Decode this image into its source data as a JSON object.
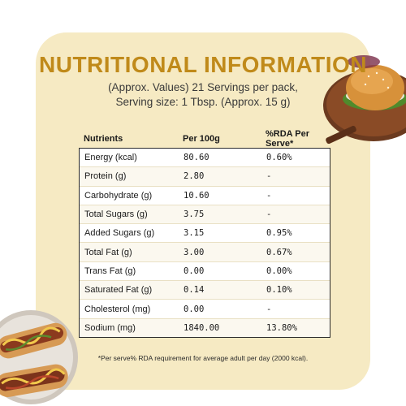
{
  "header": {
    "title": "NUTRITIONAL INFORMATION",
    "subtitle_line1": "(Approx. Values) 21 Servings per pack,",
    "subtitle_line2": "Serving size: 1 Tbsp. (Approx. 15 g)"
  },
  "table": {
    "columns": [
      "Nutrients",
      "Per 100g",
      "%RDA Per Serve*"
    ],
    "rows": [
      {
        "nutrient": "Energy (kcal)",
        "per100g": "80.60",
        "rda": "0.60%"
      },
      {
        "nutrient": "Protein (g)",
        "per100g": "2.80",
        "rda": "-"
      },
      {
        "nutrient": "Carbohydrate (g)",
        "per100g": "10.60",
        "rda": "-"
      },
      {
        "nutrient": "Total Sugars (g)",
        "per100g": "3.75",
        "rda": "-"
      },
      {
        "nutrient": "Added Sugars (g)",
        "per100g": "3.15",
        "rda": "0.95%"
      },
      {
        "nutrient": "Total Fat (g)",
        "per100g": "3.00",
        "rda": "0.67%"
      },
      {
        "nutrient": "Trans Fat (g)",
        "per100g": "0.00",
        "rda": "0.00%"
      },
      {
        "nutrient": "Saturated Fat (g)",
        "per100g": "0.14",
        "rda": "0.10%"
      },
      {
        "nutrient": "Cholesterol (mg)",
        "per100g": "0.00",
        "rda": "-"
      },
      {
        "nutrient": "Sodium (mg)",
        "per100g": "1840.00",
        "rda": "13.80%"
      }
    ]
  },
  "footnote": "*Per serve% RDA requirement for average adult per day (2000 kcal).",
  "images": {
    "top_right": "burger-on-board-image",
    "bottom_left": "hotdogs-image"
  },
  "colors": {
    "card_background": "#f6eac3",
    "title": "#c08a1a"
  }
}
